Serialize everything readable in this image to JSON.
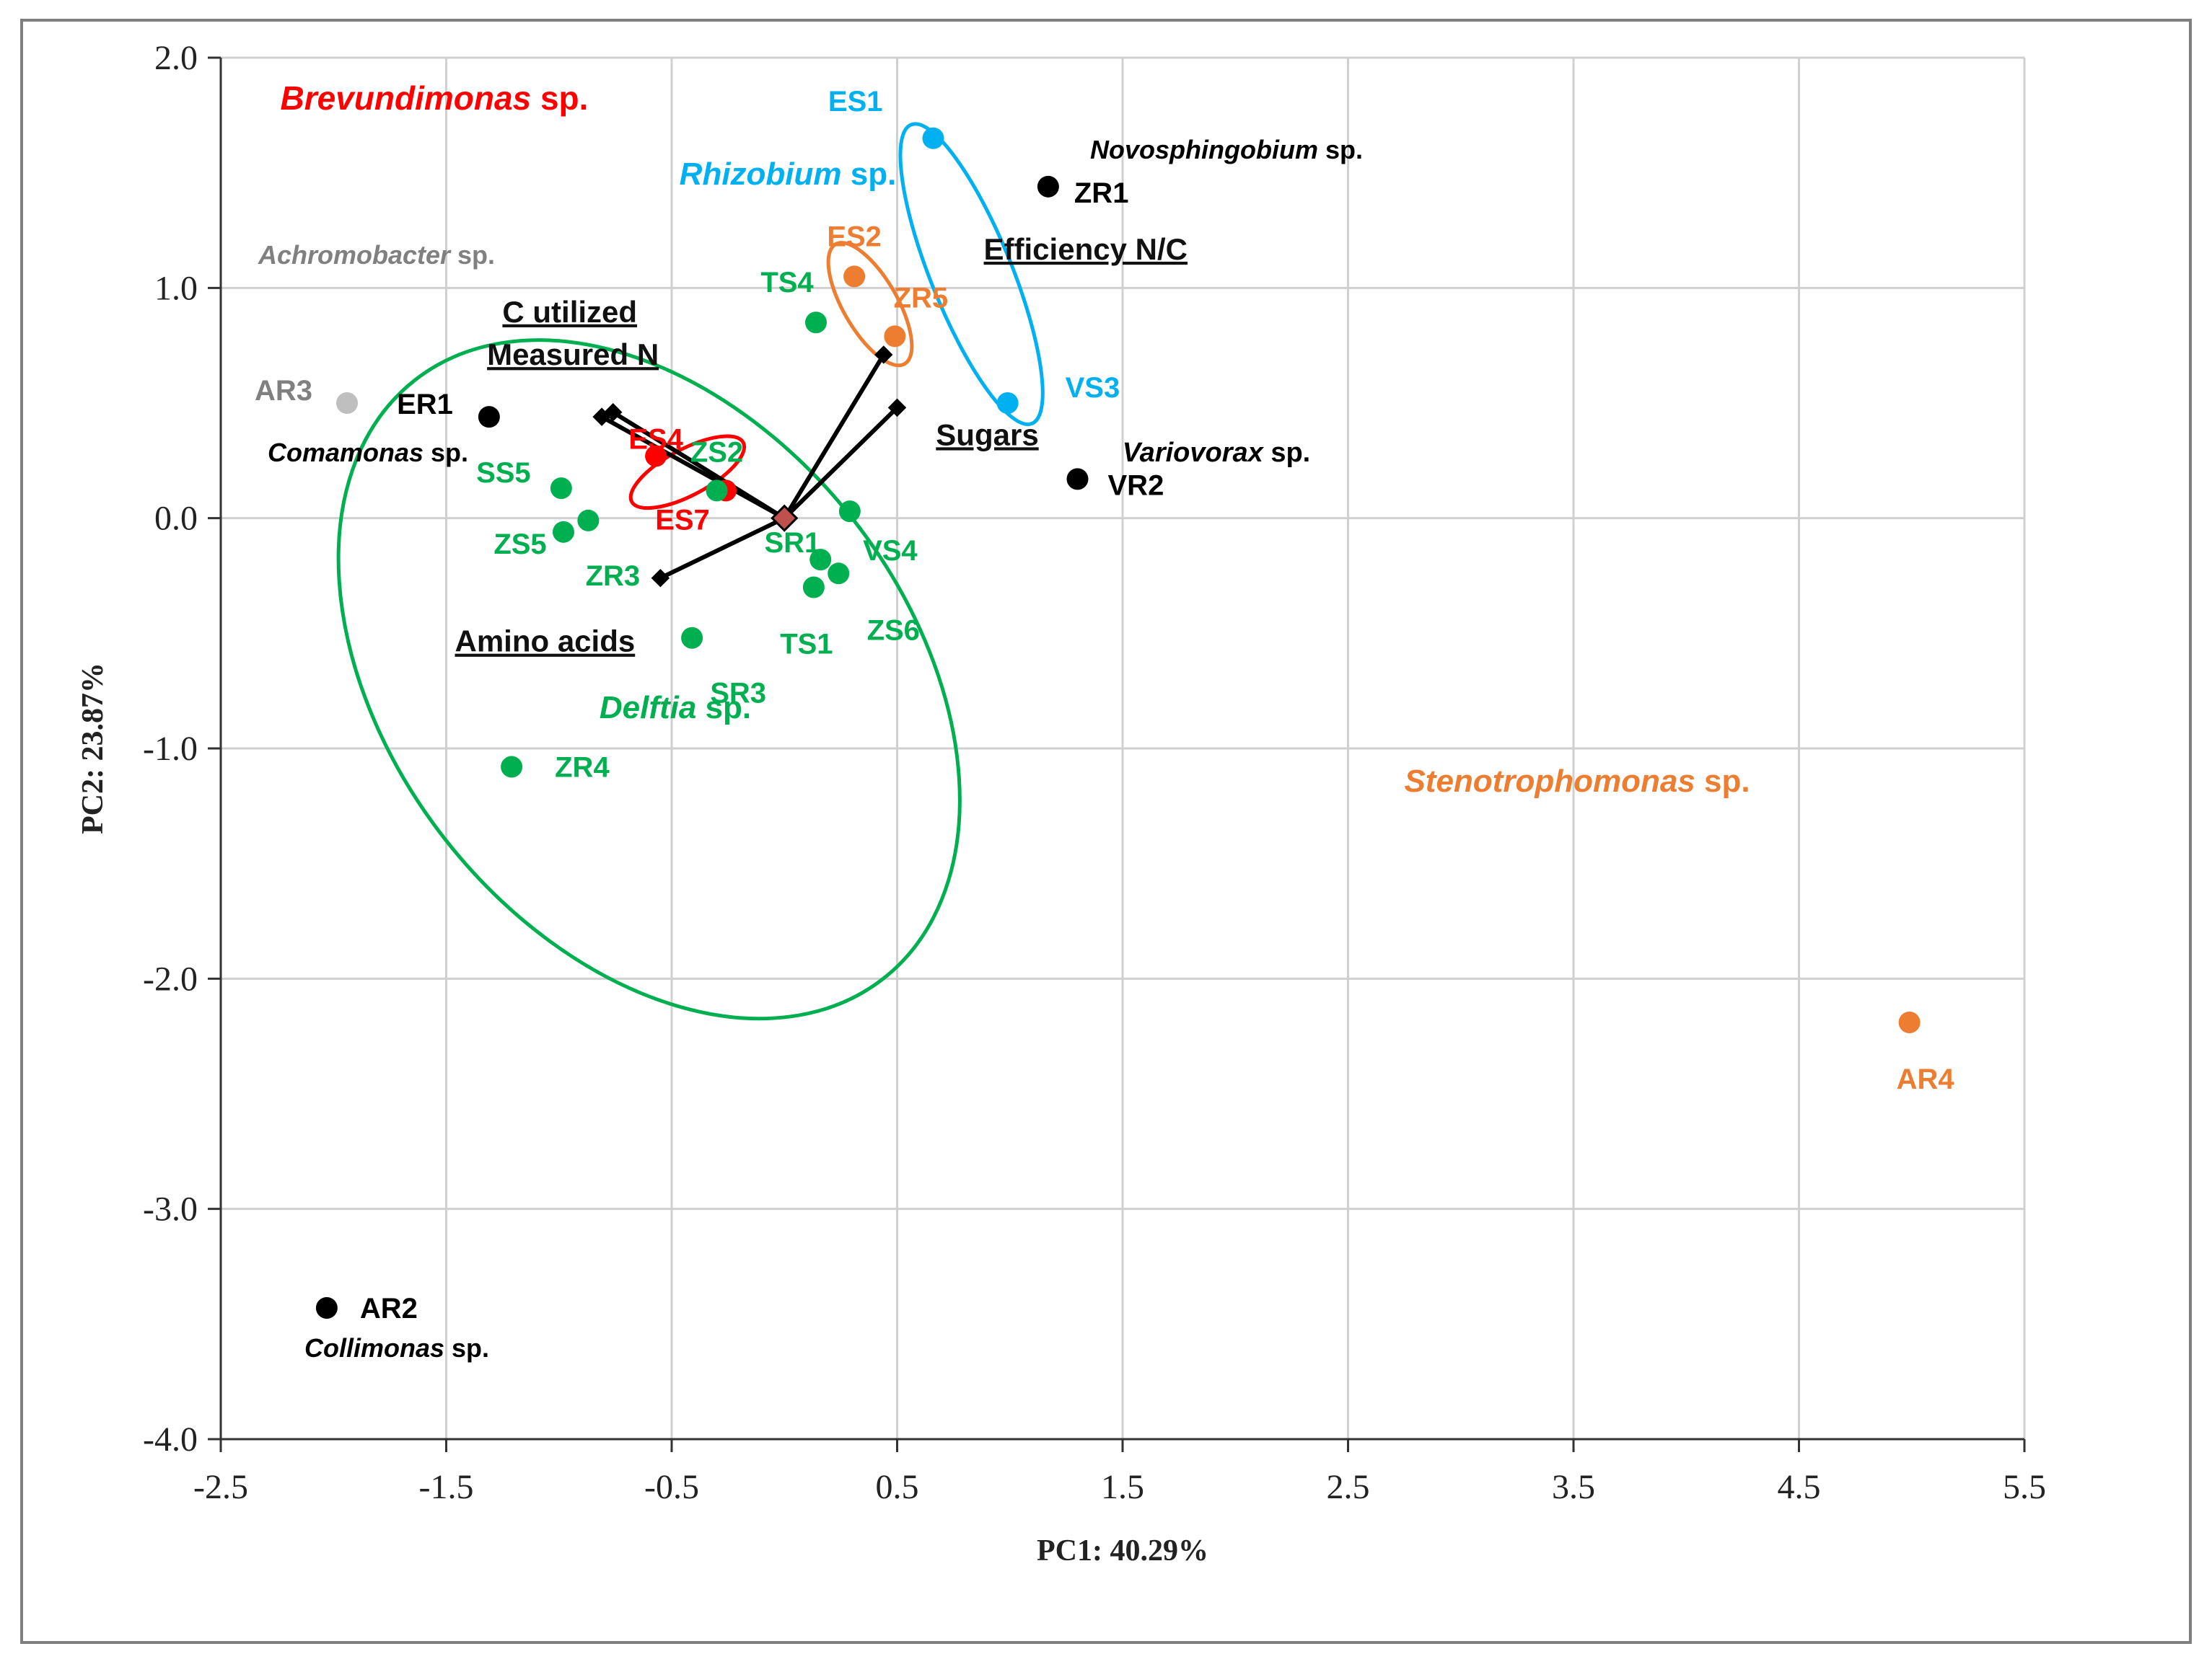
{
  "chart_data": {
    "type": "scatter",
    "xlabel": "PC1: 40.29%",
    "ylabel": "PC2: 23.87%",
    "xlim": [
      -2.5,
      5.5
    ],
    "ylim": [
      -4.0,
      2.0
    ],
    "x_ticks": [
      "-2.5",
      "-1.5",
      "-0.5",
      "0.5",
      "1.5",
      "2.5",
      "3.5",
      "4.5",
      "5.5"
    ],
    "y_ticks": [
      "2.0",
      "1.0",
      "0.0",
      "-1.0",
      "-2.0",
      "-3.0",
      "-4.0"
    ],
    "colors": {
      "Delftia": "#00b050",
      "Rhizobium": "#00b0f0",
      "Stenotrophomonas": "#ed7d31",
      "Brevundimonas": "#ff0000",
      "Achromobacter": "#bfbfbf",
      "Other": "#000000",
      "Achromobacter_label": "#808080"
    },
    "points": [
      {
        "label": "ZR1",
        "x": 1.17,
        "y": 1.44,
        "group": "Other"
      },
      {
        "label": "ER1",
        "x": -1.31,
        "y": 0.44,
        "group": "Other"
      },
      {
        "label": "VR2",
        "x": 1.3,
        "y": 0.17,
        "group": "Other"
      },
      {
        "label": "AR2",
        "x": -2.03,
        "y": -3.43,
        "group": "Other"
      },
      {
        "label": "AR3",
        "x": -1.94,
        "y": 0.5,
        "group": "Achromobacter"
      },
      {
        "label": "ES1",
        "x": 0.66,
        "y": 1.65,
        "group": "Rhizobium"
      },
      {
        "label": "VS3",
        "x": 0.99,
        "y": 0.5,
        "group": "Rhizobium"
      },
      {
        "label": "ES2",
        "x": 0.31,
        "y": 1.05,
        "group": "Stenotrophomonas"
      },
      {
        "label": "ZR5",
        "x": 0.49,
        "y": 0.79,
        "group": "Stenotrophomonas"
      },
      {
        "label": "AR4",
        "x": 4.99,
        "y": -2.19,
        "group": "Stenotrophomonas"
      },
      {
        "label": "ES4",
        "x": -0.57,
        "y": 0.27,
        "group": "Brevundimonas"
      },
      {
        "label": "ES7",
        "x": -0.26,
        "y": 0.12,
        "group": "Brevundimonas"
      },
      {
        "label": "TS4",
        "x": 0.14,
        "y": 0.85,
        "group": "Delftia"
      },
      {
        "label": "ZS2",
        "x": -0.3,
        "y": 0.12,
        "group": "Delftia"
      },
      {
        "label": "SS5",
        "x": -0.99,
        "y": 0.13,
        "group": "Delftia"
      },
      {
        "label": "ZS5",
        "x": -0.98,
        "y": -0.06,
        "group": "Delftia"
      },
      {
        "label": "ZR3",
        "x": -0.87,
        "y": -0.01,
        "group": "Delftia"
      },
      {
        "label": "SR1",
        "x": 0.16,
        "y": -0.18,
        "group": "Delftia"
      },
      {
        "label": "VS4",
        "x": 0.29,
        "y": 0.03,
        "group": "Delftia"
      },
      {
        "label": "TS1",
        "x": 0.13,
        "y": -0.3,
        "group": "Delftia"
      },
      {
        "label": "ZS6",
        "x": 0.24,
        "y": -0.24,
        "group": "Delftia"
      },
      {
        "label": "SR3",
        "x": -0.41,
        "y": -0.52,
        "group": "Delftia"
      },
      {
        "label": "ZR4",
        "x": -1.21,
        "y": -1.08,
        "group": "Delftia"
      }
    ],
    "vectors": [
      {
        "label": "C utilized",
        "x": -0.76,
        "y": 0.46
      },
      {
        "label": "Measured N",
        "x": -0.81,
        "y": 0.44
      },
      {
        "label": "Efficiency N/C",
        "x": 0.44,
        "y": 0.71
      },
      {
        "label": "Sugars",
        "x": 0.5,
        "y": 0.48
      },
      {
        "label": "Amino acids",
        "x": -0.55,
        "y": -0.26
      }
    ],
    "genus_labels": [
      {
        "text": "Brevundimonas",
        "suffix": "sp.",
        "group": "Brevundimonas"
      },
      {
        "text": "Rhizobium",
        "suffix": "sp.",
        "group": "Rhizobium"
      },
      {
        "text": "Achromobacter",
        "suffix": "sp.",
        "group": "Achromobacter_label"
      },
      {
        "text": "Novosphingobium",
        "suffix": "sp.",
        "group": "Other"
      },
      {
        "text": "Comamonas",
        "suffix": "sp.",
        "group": "Other"
      },
      {
        "text": "Variovorax",
        "suffix": "sp.",
        "group": "Other"
      },
      {
        "text": "Delftia",
        "suffix": "sp.",
        "group": "Delftia"
      },
      {
        "text": "Stenotrophomonas",
        "suffix": "sp.",
        "group": "Stenotrophomonas"
      },
      {
        "text": "Collimonas",
        "suffix": "sp.",
        "group": "Other"
      }
    ],
    "ellipses": [
      {
        "group": "Delftia",
        "cx": -0.6,
        "cy": -0.7,
        "rx": 1.15,
        "ry": 1.65,
        "angle_deg": 38
      },
      {
        "group": "Rhizobium",
        "cx": 0.83,
        "cy": 1.06,
        "rx": 0.18,
        "ry": 0.7,
        "angle_deg": 22
      },
      {
        "group": "Stenotrophomonas",
        "cx": 0.38,
        "cy": 0.93,
        "rx": 0.12,
        "ry": 0.3,
        "angle_deg": 30
      },
      {
        "group": "Brevundimonas",
        "cx": -0.43,
        "cy": 0.2,
        "rx": 0.28,
        "ry": 0.1,
        "angle_deg": 28
      }
    ]
  }
}
